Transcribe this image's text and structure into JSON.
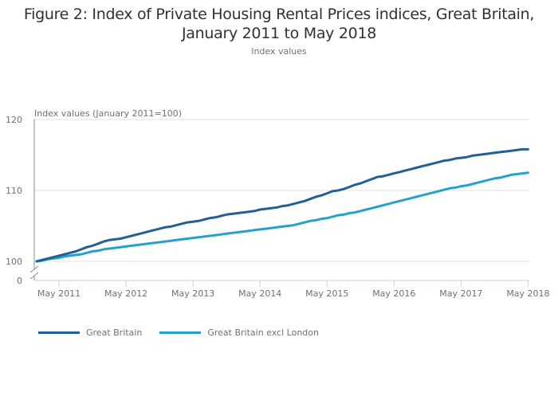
{
  "chart_data": {
    "type": "line",
    "title_lines": [
      "Figure 2: Index of Private Housing Rental Prices indices, Great Britain,",
      "January 2011 to May 2018"
    ],
    "subtitle": "Index values",
    "ylabel": "Index values (January 2011=100)",
    "xlabel": "",
    "y_ticks": [
      "120",
      "110",
      "100",
      "0"
    ],
    "y_tick_values": [
      120,
      110,
      100
    ],
    "ylim": [
      100,
      120
    ],
    "y_axis_break": true,
    "x_ticks": [
      "May 2011",
      "May 2012",
      "May 2013",
      "May 2014",
      "May 2015",
      "May 2016",
      "May 2017",
      "May 2018"
    ],
    "x_tick_months": [
      4,
      16,
      28,
      40,
      52,
      64,
      76,
      88
    ],
    "x_start": "Jan 2011",
    "x_end": "May 2018",
    "grid": true,
    "legend_position": "bottom-left",
    "series": [
      {
        "name": "Great Britain",
        "color": "#206095",
        "values": [
          100.0,
          100.2,
          100.4,
          100.6,
          100.8,
          101.0,
          101.2,
          101.4,
          101.7,
          102.0,
          102.2,
          102.5,
          102.8,
          103.0,
          103.1,
          103.2,
          103.4,
          103.6,
          103.8,
          104.0,
          104.2,
          104.4,
          104.6,
          104.8,
          104.9,
          105.1,
          105.3,
          105.5,
          105.6,
          105.7,
          105.9,
          106.1,
          106.2,
          106.4,
          106.6,
          106.7,
          106.8,
          106.9,
          107.0,
          107.1,
          107.3,
          107.4,
          107.5,
          107.6,
          107.8,
          107.9,
          108.1,
          108.3,
          108.5,
          108.8,
          109.1,
          109.3,
          109.6,
          109.9,
          110.0,
          110.2,
          110.5,
          110.8,
          111.0,
          111.3,
          111.6,
          111.9,
          112.0,
          112.2,
          112.4,
          112.6,
          112.8,
          113.0,
          113.2,
          113.4,
          113.6,
          113.8,
          114.0,
          114.2,
          114.3,
          114.5,
          114.6,
          114.7,
          114.9,
          115.0,
          115.1,
          115.2,
          115.3,
          115.4,
          115.5,
          115.6,
          115.7,
          115.8,
          115.8
        ]
      },
      {
        "name": "Great Britain excl London",
        "color": "#27a0cc",
        "values": [
          100.0,
          100.1,
          100.3,
          100.4,
          100.5,
          100.7,
          100.8,
          100.9,
          101.0,
          101.2,
          101.4,
          101.5,
          101.7,
          101.8,
          101.9,
          102.0,
          102.1,
          102.2,
          102.3,
          102.4,
          102.5,
          102.6,
          102.7,
          102.8,
          102.9,
          103.0,
          103.1,
          103.2,
          103.3,
          103.4,
          103.5,
          103.6,
          103.7,
          103.8,
          103.9,
          104.0,
          104.1,
          104.2,
          104.3,
          104.4,
          104.5,
          104.6,
          104.7,
          104.8,
          104.9,
          105.0,
          105.1,
          105.3,
          105.5,
          105.7,
          105.8,
          106.0,
          106.1,
          106.3,
          106.5,
          106.6,
          106.8,
          106.9,
          107.1,
          107.3,
          107.5,
          107.7,
          107.9,
          108.1,
          108.3,
          108.5,
          108.7,
          108.9,
          109.1,
          109.3,
          109.5,
          109.7,
          109.9,
          110.1,
          110.3,
          110.4,
          110.6,
          110.7,
          110.9,
          111.1,
          111.3,
          111.5,
          111.7,
          111.8,
          112.0,
          112.2,
          112.3,
          112.4,
          112.5
        ]
      }
    ]
  },
  "legend": {
    "items": [
      {
        "label": "Great Britain",
        "color": "#206095"
      },
      {
        "label": "Great Britain excl London",
        "color": "#27a0cc"
      }
    ]
  }
}
